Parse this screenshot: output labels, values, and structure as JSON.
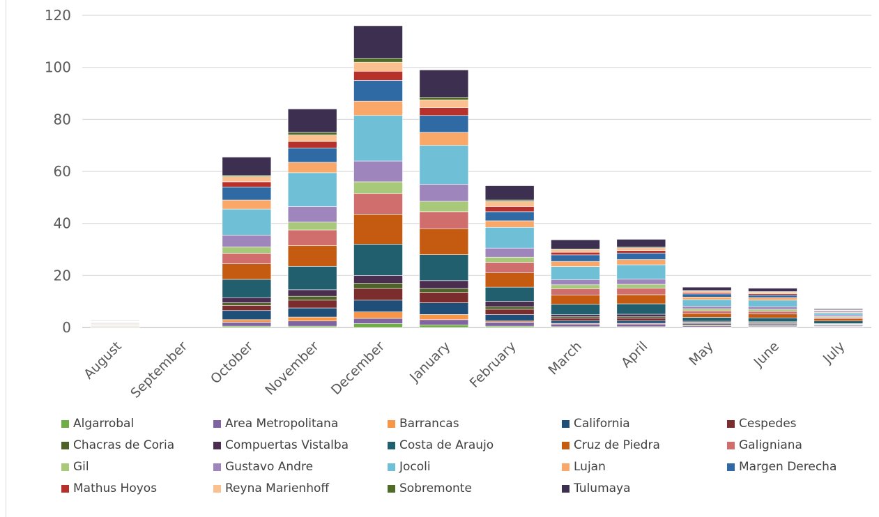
{
  "chart_data": {
    "type": "bar",
    "stacked": true,
    "title": "",
    "xlabel": "",
    "ylabel": "",
    "ylim": [
      0,
      120
    ],
    "yticks": [
      0,
      20,
      40,
      60,
      80,
      100,
      120
    ],
    "grid": true,
    "legend_position": "bottom",
    "categories": [
      "August",
      "September",
      "October",
      "November",
      "December",
      "January",
      "February",
      "March",
      "April",
      "May",
      "June",
      "July"
    ],
    "series": [
      {
        "name": "Algarrobal",
        "color": "#70AD47",
        "values": [
          0.2,
          0,
          0.5,
          0.5,
          1.5,
          1.0,
          0.5,
          0.3,
          0.3,
          0.2,
          0.2,
          0.1
        ]
      },
      {
        "name": "Area Metropolitana",
        "color": "#8064A2",
        "values": [
          0.2,
          0,
          1.5,
          2.0,
          2.0,
          2.0,
          1.5,
          1.0,
          1.0,
          0.4,
          0.3,
          0.3
        ]
      },
      {
        "name": "Barrancas",
        "color": "#F79646",
        "values": [
          0.2,
          0,
          1.0,
          1.5,
          2.5,
          2.0,
          0.5,
          0.3,
          0.3,
          0.3,
          0.3,
          0.2
        ]
      },
      {
        "name": "California",
        "color": "#1F4E79",
        "values": [
          0.2,
          0,
          3.5,
          3.5,
          4.5,
          4.5,
          2.5,
          1.0,
          1.0,
          0.5,
          0.5,
          0.3
        ]
      },
      {
        "name": "Cespedes",
        "color": "#7B2C2C",
        "values": [
          0.1,
          0,
          2.0,
          3.0,
          4.5,
          4.0,
          2.0,
          1.0,
          1.0,
          0.3,
          0.3,
          0.2
        ]
      },
      {
        "name": "Chacras de Coria",
        "color": "#4F6228",
        "values": [
          0.1,
          0,
          1.0,
          1.5,
          2.0,
          1.5,
          1.0,
          0.5,
          0.5,
          0.3,
          0.3,
          0.2
        ]
      },
      {
        "name": "Compuertas Vistalba",
        "color": "#4B2D4F",
        "values": [
          0.1,
          0,
          2.0,
          2.5,
          3.0,
          3.0,
          2.0,
          0.8,
          1.0,
          0.4,
          0.3,
          0.2
        ]
      },
      {
        "name": "Costa de Araujo",
        "color": "#215E6E",
        "values": [
          0.2,
          0,
          7.0,
          9.0,
          12.0,
          10.0,
          5.5,
          4.0,
          4.0,
          1.5,
          1.5,
          1.0
        ]
      },
      {
        "name": "Cruz de Piedra",
        "color": "#C55A11",
        "values": [
          0.2,
          0,
          6.0,
          8.0,
          11.5,
          10.0,
          5.5,
          3.5,
          3.5,
          1.5,
          1.5,
          0.8
        ]
      },
      {
        "name": "Galigniana",
        "color": "#D06E6E",
        "values": [
          0.2,
          0,
          4.0,
          6.0,
          8.0,
          6.5,
          4.0,
          2.5,
          2.5,
          1.0,
          1.0,
          0.5
        ]
      },
      {
        "name": "Gil",
        "color": "#A9C97A",
        "values": [
          0.1,
          0,
          2.5,
          3.0,
          4.5,
          4.0,
          2.0,
          1.5,
          1.5,
          0.8,
          0.8,
          0.4
        ]
      },
      {
        "name": "Gustavo Andre",
        "color": "#9E86BC",
        "values": [
          0.1,
          0,
          4.5,
          6.0,
          8.0,
          6.5,
          3.5,
          2.0,
          2.0,
          1.0,
          1.0,
          0.6
        ]
      },
      {
        "name": "Jocoli",
        "color": "#6FBFD6",
        "values": [
          0.2,
          0,
          10.0,
          13.0,
          17.5,
          15.0,
          8.0,
          5.0,
          5.5,
          2.5,
          2.5,
          0.8
        ]
      },
      {
        "name": "Lujan",
        "color": "#F9A86A",
        "values": [
          0.1,
          0,
          3.5,
          4.0,
          5.5,
          5.0,
          2.5,
          2.0,
          2.0,
          1.0,
          1.0,
          0.3
        ]
      },
      {
        "name": "Margen Derecha",
        "color": "#2F6AA5",
        "values": [
          0.1,
          0,
          5.0,
          5.5,
          8.0,
          6.5,
          3.5,
          2.5,
          2.5,
          1.2,
          1.0,
          0.3
        ]
      },
      {
        "name": "Mathus Hoyos",
        "color": "#B7312C",
        "values": [
          0.1,
          0,
          2.0,
          2.5,
          3.5,
          3.0,
          2.0,
          1.0,
          1.0,
          0.5,
          0.5,
          0.3
        ]
      },
      {
        "name": "Reyna Marienhoff",
        "color": "#FAC090",
        "values": [
          0.1,
          0,
          2.0,
          2.5,
          3.5,
          3.0,
          2.0,
          1.0,
          1.0,
          0.6,
          0.6,
          0.2
        ]
      },
      {
        "name": "Sobremonte",
        "color": "#4E6B27",
        "values": [
          0.1,
          0,
          0.5,
          1.0,
          1.5,
          1.0,
          0.5,
          0.3,
          0.3,
          0.2,
          0.2,
          0.1
        ]
      },
      {
        "name": "Tulumaya",
        "color": "#3D2F4F",
        "values": [
          0.2,
          0,
          7.0,
          9.0,
          12.5,
          10.5,
          5.5,
          3.5,
          3.0,
          1.3,
          1.3,
          0.4
        ]
      }
    ]
  }
}
